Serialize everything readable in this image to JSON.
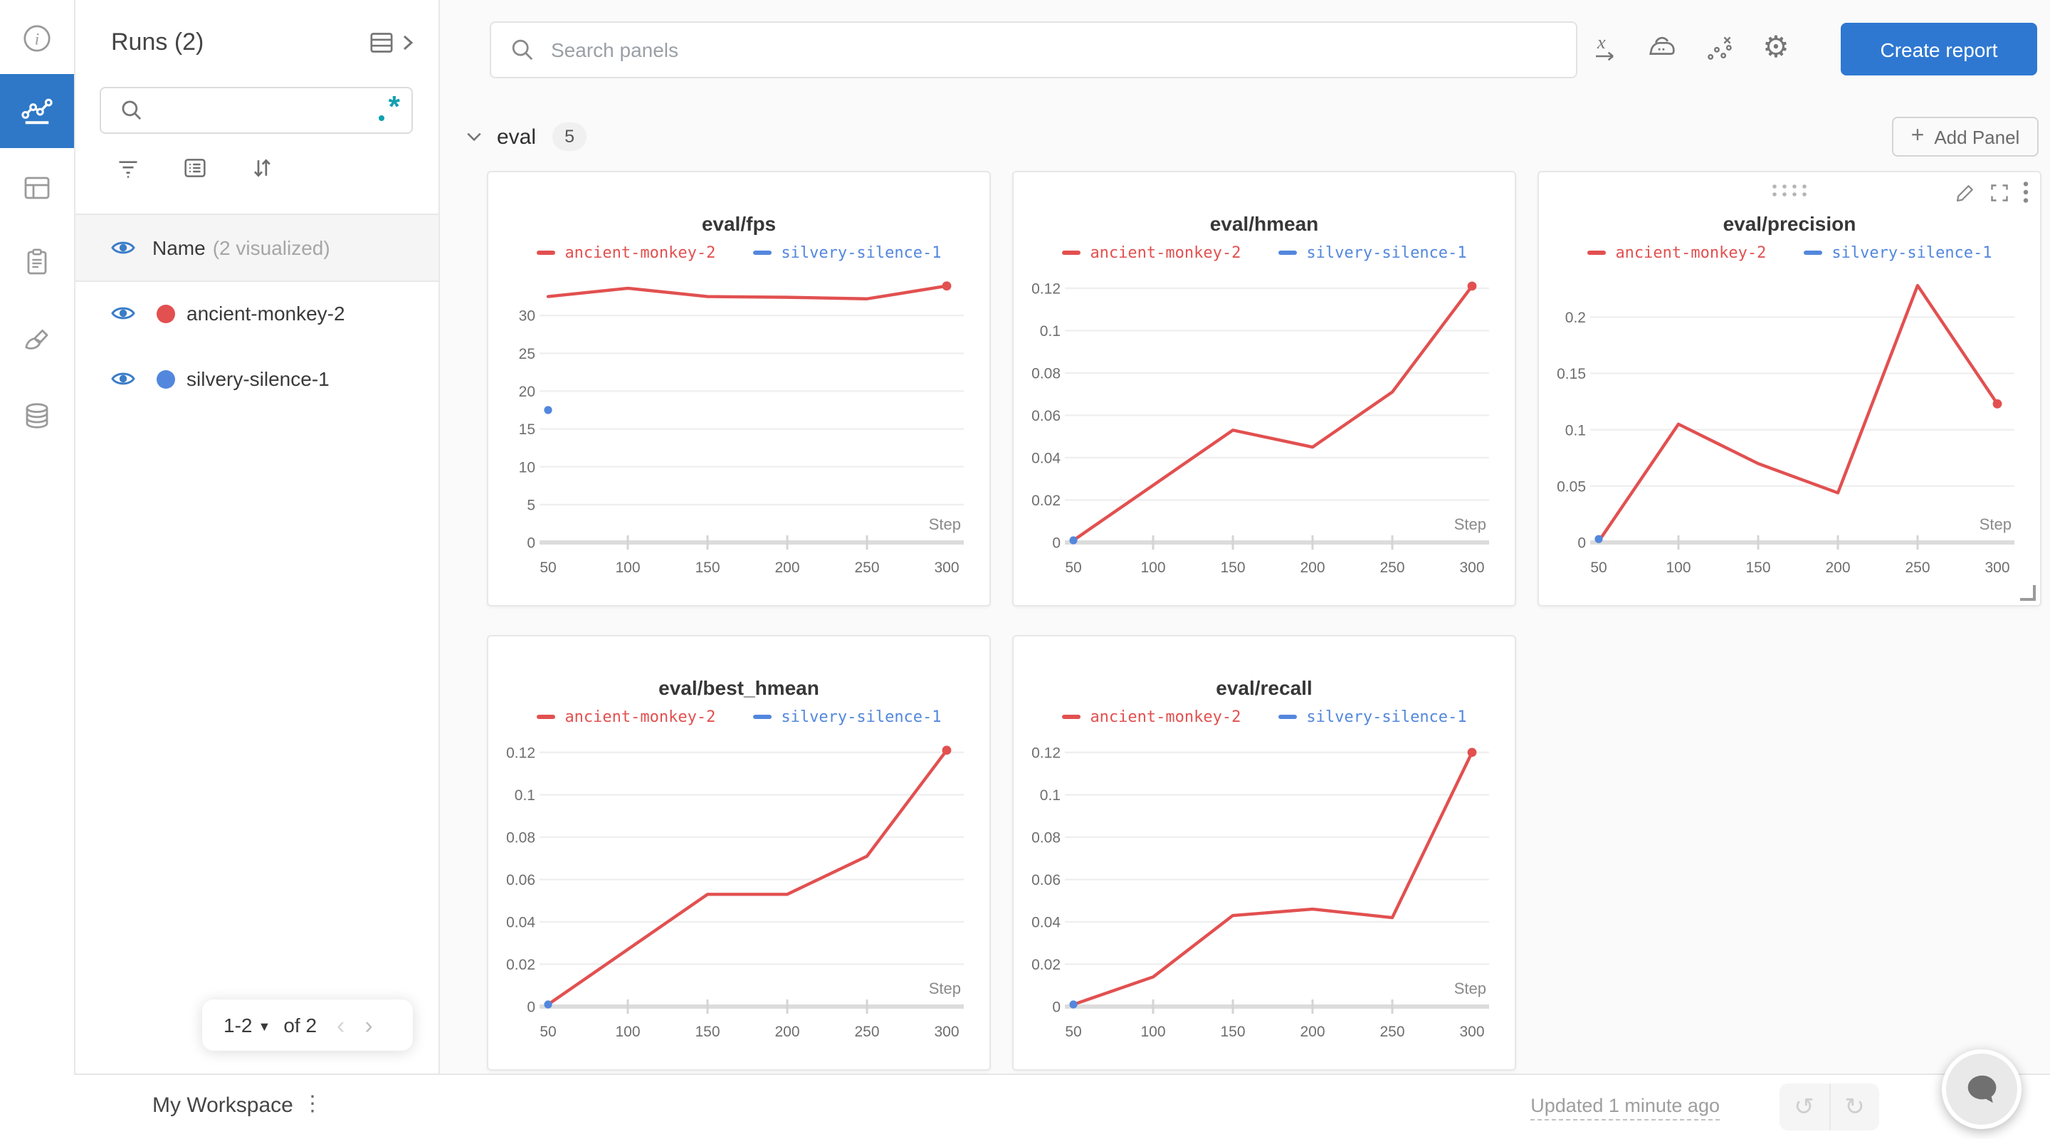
{
  "colors": {
    "nav_active_blue": "#2e78c7",
    "button_blue": "#2e78d2",
    "run_red": "#e25050",
    "run_blue": "#5387dd",
    "regex_teal": "#12a0b0"
  },
  "rail": {
    "icons": [
      "info-icon",
      "line-chart-icon",
      "table-icon",
      "clipboard-icon",
      "brush-icon",
      "database-icon"
    ],
    "active": "line-chart-icon"
  },
  "sidebar": {
    "title": "Runs (2)",
    "search": {
      "value": "",
      "regex_icon": "regex-icon"
    },
    "tool_icons": [
      "filter-icon",
      "list-icon",
      "sort-icon"
    ],
    "header_row": {
      "label": "Name",
      "note": "(2 visualized)"
    },
    "runs": [
      {
        "name": "ancient-monkey-2",
        "color": "#e25050"
      },
      {
        "name": "silvery-silence-1",
        "color": "#5387dd"
      }
    ],
    "pagination": {
      "range": "1-2",
      "of": "of 2",
      "prev_icon": "chevron-left-icon",
      "next_icon": "chevron-right-icon"
    }
  },
  "header": {
    "search_placeholder": "Search panels",
    "icons": [
      "x-axis-icon",
      "smoothing-iron-icon",
      "outliers-icon",
      "settings-gear-icon"
    ],
    "create_report_label": "Create report"
  },
  "section": {
    "title": "eval",
    "panel_count": "5",
    "add_panel_label": "Add Panel",
    "plus": "+"
  },
  "footer": {
    "workspace_label": "My Workspace",
    "updated_label": "Updated 1 minute ago",
    "undo_icon": "undo-icon",
    "redo_icon": "redo-icon",
    "chat_icon": "chat-bubble-icon"
  },
  "chart_data": [
    {
      "type": "line",
      "title": "eval/fps",
      "xlabel": "Step",
      "x": [
        50,
        100,
        150,
        200,
        250,
        300
      ],
      "xlim": [
        50,
        300
      ],
      "xticks": [
        50,
        100,
        150,
        200,
        250,
        300
      ],
      "ylim": [
        0,
        35
      ],
      "yticks": [
        0,
        5,
        10,
        15,
        20,
        25,
        30
      ],
      "grid": true,
      "legend_position": "top",
      "series": [
        {
          "name": "ancient-monkey-2",
          "color": "#e25050",
          "values": [
            32.5,
            33.6,
            32.5,
            32.4,
            32.2,
            33.9
          ]
        },
        {
          "name": "silvery-silence-1",
          "color": "#5387dd",
          "x": [
            50
          ],
          "values": [
            17.5
          ]
        }
      ]
    },
    {
      "type": "line",
      "title": "eval/hmean",
      "xlabel": "Step",
      "x": [
        50,
        100,
        150,
        200,
        250,
        300
      ],
      "xlim": [
        50,
        300
      ],
      "xticks": [
        50,
        100,
        150,
        200,
        250,
        300
      ],
      "ylim": [
        0,
        0.125
      ],
      "yticks": [
        0,
        0.02,
        0.04,
        0.06,
        0.08,
        0.1,
        0.12
      ],
      "grid": true,
      "legend_position": "top",
      "series": [
        {
          "name": "ancient-monkey-2",
          "color": "#e25050",
          "values": [
            0.001,
            0.027,
            0.053,
            0.045,
            0.071,
            0.121
          ]
        },
        {
          "name": "silvery-silence-1",
          "color": "#5387dd",
          "x": [
            50
          ],
          "values": [
            0.001
          ]
        }
      ]
    },
    {
      "type": "line",
      "title": "eval/precision",
      "xlabel": "Step",
      "hovered": true,
      "x": [
        50,
        100,
        150,
        200,
        250,
        300
      ],
      "xlim": [
        50,
        300
      ],
      "xticks": [
        50,
        100,
        150,
        200,
        250,
        300
      ],
      "ylim": [
        0,
        0.235
      ],
      "yticks": [
        0,
        0.05,
        0.1,
        0.15,
        0.2
      ],
      "grid": true,
      "legend_position": "top",
      "series": [
        {
          "name": "ancient-monkey-2",
          "color": "#e25050",
          "values": [
            0.001,
            0.105,
            0.07,
            0.044,
            0.228,
            0.123
          ]
        },
        {
          "name": "silvery-silence-1",
          "color": "#5387dd",
          "x": [
            50
          ],
          "values": [
            0.003
          ]
        }
      ],
      "hover_icons": [
        "drag-handle-icon",
        "edit-pencil-icon",
        "fullscreen-icon",
        "kebab-icon",
        "resize-handle-icon"
      ]
    },
    {
      "type": "line",
      "title": "eval/best_hmean",
      "xlabel": "Step",
      "x": [
        50,
        100,
        150,
        200,
        250,
        300
      ],
      "xlim": [
        50,
        300
      ],
      "xticks": [
        50,
        100,
        150,
        200,
        250,
        300
      ],
      "ylim": [
        0,
        0.125
      ],
      "yticks": [
        0,
        0.02,
        0.04,
        0.06,
        0.08,
        0.1,
        0.12
      ],
      "grid": true,
      "legend_position": "top",
      "series": [
        {
          "name": "ancient-monkey-2",
          "color": "#e25050",
          "values": [
            0.001,
            0.027,
            0.053,
            0.053,
            0.071,
            0.121
          ]
        },
        {
          "name": "silvery-silence-1",
          "color": "#5387dd",
          "x": [
            50
          ],
          "values": [
            0.001
          ]
        }
      ]
    },
    {
      "type": "line",
      "title": "eval/recall",
      "xlabel": "Step",
      "x": [
        50,
        100,
        150,
        200,
        250,
        300
      ],
      "xlim": [
        50,
        300
      ],
      "xticks": [
        50,
        100,
        150,
        200,
        250,
        300
      ],
      "ylim": [
        0,
        0.125
      ],
      "yticks": [
        0,
        0.02,
        0.04,
        0.06,
        0.08,
        0.1,
        0.12
      ],
      "grid": true,
      "legend_position": "top",
      "series": [
        {
          "name": "ancient-monkey-2",
          "color": "#e25050",
          "values": [
            0.001,
            0.014,
            0.043,
            0.046,
            0.042,
            0.12
          ]
        },
        {
          "name": "silvery-silence-1",
          "color": "#5387dd",
          "x": [
            50
          ],
          "values": [
            0.001
          ]
        }
      ]
    }
  ]
}
